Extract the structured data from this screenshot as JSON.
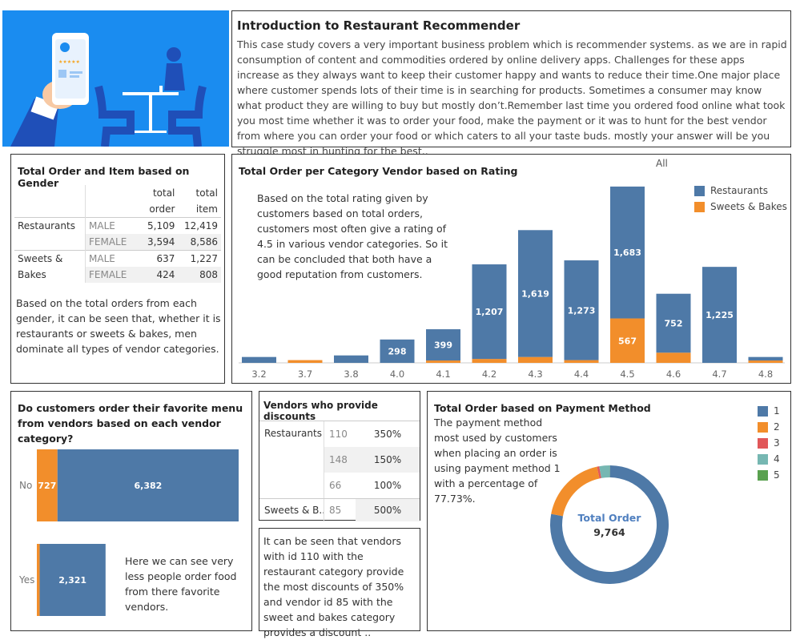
{
  "intro": {
    "title": "Introduction to Restaurant Recommender",
    "text": "This case study covers a very important business problem which is recommender systems. as we are in rapid consumption of content and commodities ordered by online delivery apps. Challenges for these apps increase as they always want to keep their customer happy and wants to reduce their time.One major place where customer spends lots of their time is in searching for products. Sometimes a consumer may know what product they are willing to buy but mostly don’t.Remember last time you ordered food online what took you most time whether it was to order your food, make the payment or it was to hunt for the best vendor from where you can order your food or which caters to all your taste buds. mostly your answer will be you struggle most in hunting for the best.."
  },
  "gender": {
    "title": "Total Order and Item based on Gender",
    "col_order": [
      "total",
      "order"
    ],
    "col_item": [
      "total",
      "item"
    ],
    "rows": [
      {
        "category": "Restaurants",
        "gender": "MALE",
        "order": "5,109",
        "item": "12,419"
      },
      {
        "category": "",
        "gender": "FEMALE",
        "order": "3,594",
        "item": "8,586"
      },
      {
        "category": "Sweets &",
        "gender": "MALE",
        "order": "637",
        "item": "1,227"
      },
      {
        "category": "Bakes",
        "gender": "FEMALE",
        "order": "424",
        "item": "808"
      }
    ],
    "note": "Based on the total orders from each gender, it can be seen that, whether it is restaurants or sweets & bakes, men dominate all types of vendor categories."
  },
  "rating": {
    "title": "Total Order per Category Vendor based on Rating",
    "filter": "All",
    "note": "Based on the total rating given by customers based on total orders, customers most often give a rating of 4.5 in various vendor categories. So it can be concluded that both have a good reputation from customers."
  },
  "favorite": {
    "title": "Do customers order their favorite menu from vendors based on each vendor category?",
    "note": "Here we can see very less people order food from there favorite vendors."
  },
  "discount": {
    "title": "Vendors who provide discounts",
    "rows": [
      {
        "category": "Restaurants",
        "id": "110",
        "discount": "350%"
      },
      {
        "category": "",
        "id": "148",
        "discount": "150%"
      },
      {
        "category": "",
        "id": "66",
        "discount": "100%"
      },
      {
        "category": "Sweets & B..",
        "id": "85",
        "discount": "500%"
      }
    ],
    "note": "It can be seen that vendors with id 110 with the restaurant category provide the most discounts of 350% and vendor id 85 with the sweet and bakes category provides a discount .."
  },
  "payment": {
    "title": "Total Order based on Payment Method",
    "note": "The payment method most used by customers when placing an order is using payment method 1 with a percentage of 77.73%.",
    "center_label": "Total Order",
    "center_value": "9,764"
  },
  "colors": {
    "restaurants": "#4e79a7",
    "sweets": "#f28e2b",
    "m3": "#e15759",
    "m4": "#76b7b2",
    "m5": "#59a14f",
    "hero_bg": "#1a8cf0"
  },
  "chart_data": [
    {
      "type": "bar",
      "title": "Total Order per Category Vendor based on Rating",
      "categories": [
        "3.2",
        "3.7",
        "3.8",
        "4.0",
        "4.1",
        "4.2",
        "4.3",
        "4.4",
        "4.5",
        "4.6",
        "4.7",
        "4.8"
      ],
      "series": [
        {
          "name": "Restaurants",
          "values": [
            75,
            0,
            95,
            298,
            399,
            1207,
            1619,
            1273,
            1683,
            752,
            1225,
            45
          ]
        },
        {
          "name": "Sweets & Bakes",
          "values": [
            0,
            35,
            0,
            0,
            30,
            50,
            75,
            35,
            567,
            130,
            0,
            30
          ]
        }
      ],
      "labels": [
        "",
        "",
        "",
        "298",
        "399",
        "1,207",
        "1,619",
        "1,273",
        "1,683",
        "752",
        "1,225",
        ""
      ],
      "sweets_labels": [
        "",
        "",
        "",
        "",
        "",
        "",
        "",
        "",
        "567",
        "",
        "",
        ""
      ],
      "stacked": true,
      "ylim": [
        0,
        2300
      ],
      "legend": "top-right"
    },
    {
      "type": "bar",
      "orientation": "horizontal",
      "title": "Do customers order their favorite menu from vendors based on each vendor category?",
      "categories": [
        "No",
        "Yes"
      ],
      "series": [
        {
          "name": "Sweets & Bakes",
          "values": [
            727,
            100
          ]
        },
        {
          "name": "Restaurants",
          "values": [
            6382,
            2321
          ]
        }
      ],
      "labels_sweets": [
        "727",
        ""
      ],
      "labels_rest": [
        "6,382",
        "2,321"
      ],
      "stacked": true,
      "xlim": [
        0,
        7109
      ]
    },
    {
      "type": "pie",
      "title": "Total Order based on Payment Method",
      "categories": [
        "1",
        "2",
        "3",
        "4",
        "5"
      ],
      "values": [
        7590,
        1830,
        60,
        280,
        4
      ],
      "legend": "top-right"
    }
  ]
}
